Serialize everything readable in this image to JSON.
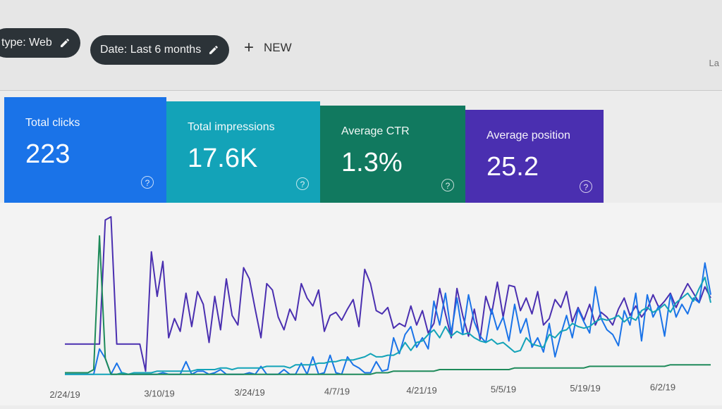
{
  "filters": {
    "type_chip": "type: Web",
    "date_chip": "Date: Last 6 months",
    "new_label": "NEW",
    "corner_text": "La"
  },
  "metrics": [
    {
      "label": "Total clicks",
      "value": "223",
      "color": "#1a73e8"
    },
    {
      "label": "Total impressions",
      "value": "17.6K",
      "color": "#13a3b8"
    },
    {
      "label": "Average CTR",
      "value": "1.3%",
      "color": "#11795f"
    },
    {
      "label": "Average position",
      "value": "25.2",
      "color": "#4a2fb0"
    }
  ],
  "chart_data": {
    "type": "line",
    "x_ticks": [
      "2/24/19",
      "3/10/19",
      "3/24/19",
      "4/7/19",
      "4/21/19",
      "5/5/19",
      "5/19/19",
      "6/2/19"
    ],
    "series": [
      {
        "color": "#4a2fb0",
        "values": [
          2,
          2,
          2,
          2,
          2,
          2,
          2,
          9.8,
          10,
          2,
          2,
          2,
          2,
          2,
          0.3,
          7.8,
          5,
          7.2,
          2.4,
          3.6,
          2.8,
          5.2,
          3.1,
          5.3,
          4.5,
          2.1,
          5,
          2.9,
          6.1,
          3.8,
          3.2,
          6.8,
          6.1,
          4.2,
          2.4,
          5.8,
          5.4,
          3.7,
          2.9,
          4.2,
          3.5,
          5.8,
          4.9,
          4.4,
          5.4,
          2.8,
          3.8,
          4,
          3.5,
          4.2,
          4.8,
          3.1,
          6.7,
          5.8,
          4.1,
          3.9,
          4.3,
          3,
          3.3,
          3.1,
          4.4,
          3.2,
          4.1,
          2.7,
          3.3,
          5.5,
          3.9,
          2.4,
          5.5,
          3.8,
          2.5,
          4.2,
          2.3,
          5,
          3.9,
          5.9,
          3.7,
          5.7,
          5.6,
          4.1,
          4.9,
          3.9,
          5.3,
          3.2,
          3.6,
          4.8,
          4.3,
          5.3,
          3.4,
          4.3,
          3.5,
          4.5,
          3.2,
          4,
          3.7,
          3.2,
          4.2,
          4.9,
          3.8,
          4.4,
          3.7,
          4.2,
          5.1,
          4.3,
          4.7,
          5.2,
          4.3,
          5.1,
          5.8,
          5.2,
          4.6,
          5.6,
          4.9
        ]
      },
      {
        "color": "#1a73e8",
        "values": [
          0.1,
          0.1,
          0.1,
          0.1,
          0.1,
          0.1,
          1.7,
          1.1,
          0.1,
          0.8,
          0.1,
          0.1,
          0.1,
          0.1,
          0.1,
          0.1,
          0.1,
          0.2,
          0.1,
          0.1,
          0.1,
          0.9,
          0.1,
          0.3,
          0.3,
          0.1,
          0.2,
          0.4,
          0.1,
          0.1,
          0.1,
          0.1,
          0.2,
          0.1,
          0.6,
          0.1,
          0.1,
          0.1,
          0.4,
          0.1,
          0.1,
          0.8,
          0.1,
          1.2,
          0.1,
          0.2,
          1.3,
          0.2,
          0.1,
          1.2,
          0.7,
          0.5,
          0.2,
          0.2,
          0.9,
          0.3,
          0.4,
          2.4,
          1.4,
          2.6,
          3.1,
          1.8,
          2.4,
          1.7,
          4.7,
          3.2,
          5.2,
          2.7,
          4.9,
          2.6,
          5.1,
          3.4,
          2.5,
          2.1,
          4.2,
          2.9,
          3.7,
          2.2,
          4.5,
          2.7,
          3.6,
          1.8,
          2.4,
          1.5,
          3.3,
          1.2,
          2.6,
          3.8,
          2.4,
          4.2,
          3.4,
          2.7,
          5.6,
          3.6,
          2.9,
          2.6,
          1.9,
          4.1,
          3.2,
          5.2,
          2.2,
          5.1,
          3.7,
          4.4,
          2.5,
          5.1,
          3.7,
          4.5,
          3.9,
          4.9,
          4.6,
          7.1,
          5.1
        ]
      },
      {
        "color": "#13a3b8",
        "values": [
          0.1,
          0.1,
          0.1,
          0.1,
          0.1,
          0.1,
          0.1,
          0.1,
          0.1,
          0.1,
          0.2,
          0.1,
          0.2,
          0.2,
          0.2,
          0.2,
          0.3,
          0.3,
          0.3,
          0.3,
          0.3,
          0.3,
          0.3,
          0.4,
          0.4,
          0.4,
          0.4,
          0.5,
          0.5,
          0.4,
          0.5,
          0.5,
          0.5,
          0.5,
          0.5,
          0.6,
          0.6,
          0.6,
          0.6,
          0.5,
          0.7,
          0.7,
          0.7,
          0.7,
          0.8,
          0.8,
          0.9,
          0.9,
          1,
          1,
          1,
          1.1,
          1.2,
          1.4,
          1.2,
          1.2,
          1.3,
          1.3,
          1.5,
          2.1,
          1.6,
          2.1,
          2.2,
          2.6,
          2.9,
          2.4,
          3.1,
          2.5,
          2.8,
          2.6,
          2.7,
          2.4,
          2.2,
          2.1,
          2.3,
          2,
          2.1,
          1.8,
          1.5,
          1.6,
          2.4,
          2,
          1.9,
          1.8,
          2.6,
          2.4,
          2.8,
          2.9,
          3.3,
          3.1,
          3,
          3.1,
          3.4,
          3.6,
          3.5,
          3.6,
          3.8,
          3.4,
          3.7,
          3.5,
          4.1,
          4.3,
          4,
          4.2,
          4.5,
          4,
          4.6,
          4.9,
          5.2,
          4.7,
          5.5,
          6.2,
          4.6
        ]
      },
      {
        "color": "#1e8a5a",
        "values": [
          0.2,
          0.2,
          0.2,
          0.2,
          0.2,
          0.4,
          8.8,
          1.1,
          0.1,
          0.1,
          0.1,
          0.1,
          0.1,
          0.1,
          0.1,
          0.1,
          0.1,
          0.1,
          0.1,
          0.1,
          0.1,
          0.1,
          0.1,
          0.1,
          0.1,
          0.1,
          0.1,
          0.1,
          0.1,
          0.1,
          0.1,
          0.1,
          0.1,
          0.1,
          0.1,
          0.1,
          0.1,
          0.1,
          0.1,
          0.1,
          0.1,
          0.1,
          0.1,
          0.1,
          0.1,
          0.1,
          0.1,
          0.1,
          0.1,
          0.1,
          0.1,
          0.1,
          0.1,
          0.1,
          0.2,
          0.2,
          0.2,
          0.3,
          0.3,
          0.3,
          0.3,
          0.3,
          0.3,
          0.3,
          0.3,
          0.4,
          0.4,
          0.4,
          0.4,
          0.4,
          0.4,
          0.4,
          0.4,
          0.4,
          0.4,
          0.4,
          0.4,
          0.4,
          0.5,
          0.5,
          0.5,
          0.5,
          0.5,
          0.5,
          0.5,
          0.5,
          0.5,
          0.5,
          0.5,
          0.5,
          0.5,
          0.6,
          0.6,
          0.6,
          0.6,
          0.6,
          0.6,
          0.6,
          0.6,
          0.6,
          0.6,
          0.6,
          0.6,
          0.6,
          0.6,
          0.7,
          0.7,
          0.7,
          0.7,
          0.7,
          0.7,
          0.7,
          0.7
        ]
      }
    ],
    "ylim": [
      0,
      10
    ],
    "grid": false,
    "legend": "none"
  }
}
